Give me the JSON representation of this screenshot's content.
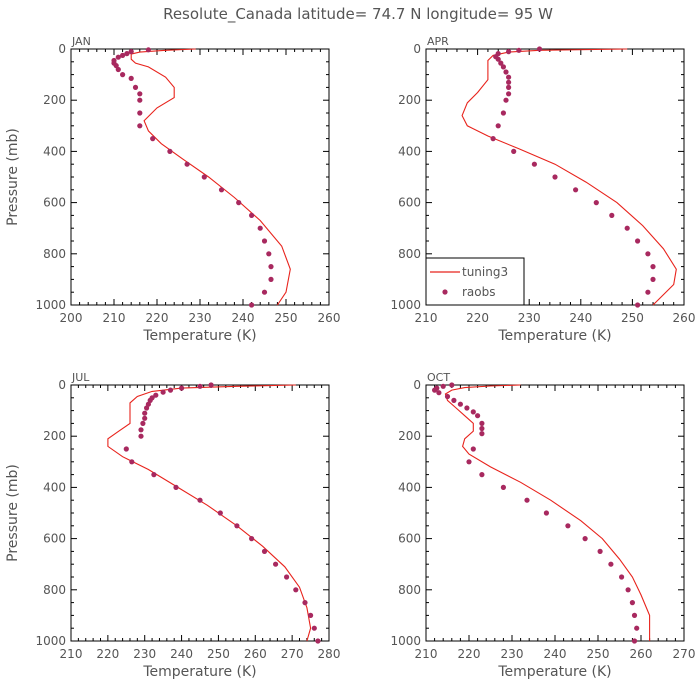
{
  "title": "Resolute_Canada   latitude= 74.7 N longitude= 95 W",
  "colors": {
    "model": "#e8231c",
    "obs": "#a8295f",
    "text": "#555555"
  },
  "chart_data": [
    {
      "type": "line",
      "panel_label": "JAN",
      "xlabel": "Temperature (K)",
      "ylabel": "Pressure (mb)",
      "xlim": [
        200,
        260
      ],
      "ylim": [
        1000,
        0
      ],
      "xticks": [
        "200",
        "210",
        "220",
        "230",
        "240",
        "250",
        "260"
      ],
      "yticks": [
        "0",
        "200",
        "400",
        "600",
        "800",
        "1000"
      ],
      "series": [
        {
          "name": "tuning3",
          "kind": "line",
          "points": [
            [
              229,
              0
            ],
            [
              222,
              5
            ],
            [
              216,
              12
            ],
            [
              214,
              20
            ],
            [
              214,
              40
            ],
            [
              215,
              55
            ],
            [
              218,
              70
            ],
            [
              222,
              110
            ],
            [
              224,
              150
            ],
            [
              224,
              190
            ],
            [
              220,
              230
            ],
            [
              217,
              280
            ],
            [
              218,
              320
            ],
            [
              221,
              370
            ],
            [
              226,
              430
            ],
            [
              232,
              500
            ],
            [
              238,
              580
            ],
            [
              244,
              670
            ],
            [
              249,
              770
            ],
            [
              251,
              860
            ],
            [
              250,
              950
            ],
            [
              248,
              1000
            ]
          ]
        },
        {
          "name": "raobs",
          "kind": "points",
          "points": [
            [
              218,
              3
            ],
            [
              214,
              10
            ],
            [
              213,
              18
            ],
            [
              212,
              25
            ],
            [
              211,
              32
            ],
            [
              210,
              45
            ],
            [
              210,
              55
            ],
            [
              210.5,
              65
            ],
            [
              211,
              80
            ],
            [
              212,
              100
            ],
            [
              214,
              115
            ],
            [
              215,
              150
            ],
            [
              216,
              175
            ],
            [
              216,
              200
            ],
            [
              216,
              250
            ],
            [
              216,
              300
            ],
            [
              219,
              350
            ],
            [
              223,
              400
            ],
            [
              227,
              450
            ],
            [
              231,
              500
            ],
            [
              235,
              550
            ],
            [
              239,
              600
            ],
            [
              242,
              650
            ],
            [
              244,
              700
            ],
            [
              245,
              750
            ],
            [
              246,
              800
            ],
            [
              246.5,
              850
            ],
            [
              246.5,
              900
            ],
            [
              245,
              950
            ],
            [
              242,
              1000
            ]
          ]
        }
      ]
    },
    {
      "type": "line",
      "panel_label": "APR",
      "xlabel": "Temperature (K)",
      "ylabel": "Pressure (mb)",
      "xlim": [
        210,
        260
      ],
      "ylim": [
        1000,
        0
      ],
      "xticks": [
        "210",
        "220",
        "230",
        "240",
        "250",
        "260"
      ],
      "yticks": [
        "0",
        "200",
        "400",
        "600",
        "800",
        "1000"
      ],
      "legend": {
        "placement": "bottom-left",
        "entries": [
          "tuning3",
          "raobs"
        ]
      },
      "series": [
        {
          "name": "tuning3",
          "kind": "line",
          "points": [
            [
              249,
              0
            ],
            [
              232,
              5
            ],
            [
              226,
              12
            ],
            [
              223,
              25
            ],
            [
              222,
              45
            ],
            [
              222,
              80
            ],
            [
              222,
              120
            ],
            [
              220,
              170
            ],
            [
              218,
              210
            ],
            [
              217,
              260
            ],
            [
              218,
              300
            ],
            [
              222,
              340
            ],
            [
              228,
              390
            ],
            [
              235,
              450
            ],
            [
              241,
              520
            ],
            [
              247,
              600
            ],
            [
              252,
              690
            ],
            [
              256,
              780
            ],
            [
              258.5,
              860
            ],
            [
              258,
              920
            ],
            [
              255,
              980
            ],
            [
              254,
              1000
            ]
          ]
        },
        {
          "name": "raobs",
          "kind": "points",
          "points": [
            [
              232,
              0
            ],
            [
              228,
              5
            ],
            [
              226,
              10
            ],
            [
              224,
              18
            ],
            [
              223.5,
              30
            ],
            [
              224,
              40
            ],
            [
              224.5,
              55
            ],
            [
              225,
              70
            ],
            [
              225.5,
              90
            ],
            [
              226,
              110
            ],
            [
              226,
              130
            ],
            [
              226,
              150
            ],
            [
              226,
              175
            ],
            [
              225.5,
              200
            ],
            [
              225,
              250
            ],
            [
              224,
              300
            ],
            [
              223,
              350
            ],
            [
              227,
              400
            ],
            [
              231,
              450
            ],
            [
              235,
              500
            ],
            [
              239,
              550
            ],
            [
              243,
              600
            ],
            [
              246,
              650
            ],
            [
              249,
              700
            ],
            [
              251,
              750
            ],
            [
              253,
              800
            ],
            [
              254,
              850
            ],
            [
              254,
              900
            ],
            [
              253,
              950
            ],
            [
              251,
              1000
            ]
          ]
        }
      ]
    },
    {
      "type": "line",
      "panel_label": "JUL",
      "xlabel": "Temperature (K)",
      "ylabel": "Pressure (mb)",
      "xlim": [
        210,
        280
      ],
      "ylim": [
        1000,
        0
      ],
      "xticks": [
        "210",
        "220",
        "230",
        "240",
        "250",
        "260",
        "270",
        "280"
      ],
      "yticks": [
        "0",
        "200",
        "400",
        "600",
        "800",
        "1000"
      ],
      "series": [
        {
          "name": "tuning3",
          "kind": "line",
          "points": [
            [
              271,
              0
            ],
            [
              255,
              5
            ],
            [
              240,
              12
            ],
            [
              232,
              25
            ],
            [
              228,
              45
            ],
            [
              226,
              70
            ],
            [
              226,
              110
            ],
            [
              226,
              150
            ],
            [
              223,
              180
            ],
            [
              220,
              210
            ],
            [
              220,
              240
            ],
            [
              224,
              280
            ],
            [
              231,
              330
            ],
            [
              239,
              400
            ],
            [
              247,
              470
            ],
            [
              255,
              550
            ],
            [
              262,
              630
            ],
            [
              268,
              710
            ],
            [
              272,
              790
            ],
            [
              274,
              870
            ],
            [
              275,
              950
            ],
            [
              274,
              1000
            ]
          ]
        },
        {
          "name": "raobs",
          "kind": "points",
          "points": [
            [
              248,
              0
            ],
            [
              245,
              5
            ],
            [
              240,
              12
            ],
            [
              237,
              20
            ],
            [
              235,
              28
            ],
            [
              233,
              40
            ],
            [
              232,
              50
            ],
            [
              231.5,
              60
            ],
            [
              231,
              75
            ],
            [
              230.5,
              90
            ],
            [
              230,
              110
            ],
            [
              230,
              130
            ],
            [
              229.5,
              150
            ],
            [
              229,
              175
            ],
            [
              229,
              200
            ],
            [
              225,
              250
            ],
            [
              226.5,
              300
            ],
            [
              232.5,
              350
            ],
            [
              238.5,
              400
            ],
            [
              245,
              450
            ],
            [
              250.5,
              500
            ],
            [
              255,
              550
            ],
            [
              259,
              600
            ],
            [
              262.5,
              650
            ],
            [
              265.5,
              700
            ],
            [
              268.5,
              750
            ],
            [
              271,
              800
            ],
            [
              273.5,
              850
            ],
            [
              275,
              900
            ],
            [
              276,
              950
            ],
            [
              277,
              1000
            ]
          ]
        }
      ]
    },
    {
      "type": "line",
      "panel_label": "OCT",
      "xlabel": "Temperature (K)",
      "ylabel": "Pressure (mb)",
      "xlim": [
        210,
        270
      ],
      "ylim": [
        1000,
        0
      ],
      "xticks": [
        "210",
        "220",
        "230",
        "240",
        "250",
        "260",
        "270"
      ],
      "yticks": [
        "0",
        "200",
        "400",
        "600",
        "800",
        "1000"
      ],
      "series": [
        {
          "name": "tuning3",
          "kind": "line",
          "points": [
            [
              232,
              0
            ],
            [
              225,
              4
            ],
            [
              219,
              10
            ],
            [
              216,
              20
            ],
            [
              214.5,
              35
            ],
            [
              215,
              60
            ],
            [
              217,
              90
            ],
            [
              219,
              120
            ],
            [
              221,
              150
            ],
            [
              221,
              180
            ],
            [
              219,
              210
            ],
            [
              218.5,
              240
            ],
            [
              220,
              270
            ],
            [
              225,
              320
            ],
            [
              232,
              380
            ],
            [
              239,
              450
            ],
            [
              246,
              530
            ],
            [
              251,
              600
            ],
            [
              255,
              680
            ],
            [
              258,
              750
            ],
            [
              260,
              820
            ],
            [
              262,
              900
            ],
            [
              262,
              1000
            ]
          ]
        },
        {
          "name": "raobs",
          "kind": "points",
          "points": [
            [
              216,
              0
            ],
            [
              214,
              5
            ],
            [
              212.5,
              12
            ],
            [
              212,
              20
            ],
            [
              213,
              30
            ],
            [
              215,
              45
            ],
            [
              216.5,
              60
            ],
            [
              218,
              75
            ],
            [
              219.5,
              90
            ],
            [
              221,
              105
            ],
            [
              222,
              120
            ],
            [
              223,
              150
            ],
            [
              223,
              170
            ],
            [
              223,
              190
            ],
            [
              221,
              250
            ],
            [
              220,
              300
            ],
            [
              223,
              350
            ],
            [
              228,
              400
            ],
            [
              233.5,
              450
            ],
            [
              238,
              500
            ],
            [
              243,
              550
            ],
            [
              247,
              600
            ],
            [
              250.5,
              650
            ],
            [
              253,
              700
            ],
            [
              255.5,
              750
            ],
            [
              257,
              800
            ],
            [
              258,
              850
            ],
            [
              258.5,
              900
            ],
            [
              259,
              950
            ],
            [
              258.5,
              1000
            ]
          ]
        }
      ]
    }
  ]
}
